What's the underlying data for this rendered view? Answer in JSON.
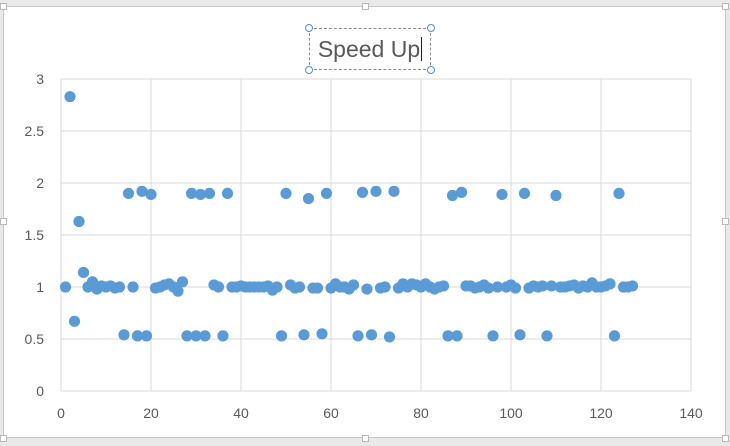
{
  "chart_data": {
    "type": "scatter",
    "title": "Speed Up",
    "xlabel": "",
    "ylabel": "",
    "xlim": [
      0,
      140
    ],
    "ylim": [
      0,
      3
    ],
    "x_ticks": [
      "0",
      "20",
      "40",
      "60",
      "80",
      "100",
      "120",
      "140"
    ],
    "y_ticks": [
      "0",
      "0.5",
      "1",
      "1.5",
      "2",
      "2.5",
      "3"
    ],
    "grid": true,
    "legend": "none",
    "marker_color": "#5b9bd5",
    "gridline_color": "#d9d9d9",
    "series": [
      {
        "points": [
          [
            1,
            1.0
          ],
          [
            2,
            2.83
          ],
          [
            3,
            0.67
          ],
          [
            4,
            1.63
          ],
          [
            5,
            1.14
          ],
          [
            6,
            1.0
          ],
          [
            7,
            1.05
          ],
          [
            8,
            0.98
          ],
          [
            9,
            1.01
          ],
          [
            10,
            1.0
          ],
          [
            11,
            1.01
          ],
          [
            12,
            0.99
          ],
          [
            13,
            1.0
          ],
          [
            14,
            0.54
          ],
          [
            15,
            1.9
          ],
          [
            16,
            1.0
          ],
          [
            17,
            0.53
          ],
          [
            18,
            1.92
          ],
          [
            19,
            0.53
          ],
          [
            20,
            1.89
          ],
          [
            21,
            0.99
          ],
          [
            22,
            1.0
          ],
          [
            23,
            1.02
          ],
          [
            24,
            1.03
          ],
          [
            25,
            1.0
          ],
          [
            26,
            0.96
          ],
          [
            27,
            1.05
          ],
          [
            28,
            0.53
          ],
          [
            29,
            1.9
          ],
          [
            30,
            0.53
          ],
          [
            31,
            1.89
          ],
          [
            32,
            0.53
          ],
          [
            33,
            1.9
          ],
          [
            34,
            1.02
          ],
          [
            35,
            1.0
          ],
          [
            36,
            0.53
          ],
          [
            37,
            1.9
          ],
          [
            38,
            1.0
          ],
          [
            39,
            1.0
          ],
          [
            40,
            1.01
          ],
          [
            41,
            1.0
          ],
          [
            42,
            1.0
          ],
          [
            43,
            1.0
          ],
          [
            44,
            1.0
          ],
          [
            45,
            1.0
          ],
          [
            46,
            1.01
          ],
          [
            47,
            0.97
          ],
          [
            48,
            1.0
          ],
          [
            49,
            0.53
          ],
          [
            50,
            1.9
          ],
          [
            51,
            1.02
          ],
          [
            52,
            0.99
          ],
          [
            53,
            1.0
          ],
          [
            54,
            0.54
          ],
          [
            55,
            1.85
          ],
          [
            56,
            0.99
          ],
          [
            57,
            0.99
          ],
          [
            58,
            0.55
          ],
          [
            59,
            1.9
          ],
          [
            60,
            0.99
          ],
          [
            61,
            1.03
          ],
          [
            62,
            1.0
          ],
          [
            63,
            1.0
          ],
          [
            64,
            0.98
          ],
          [
            65,
            1.02
          ],
          [
            66,
            0.53
          ],
          [
            67,
            1.91
          ],
          [
            68,
            0.98
          ],
          [
            69,
            0.54
          ],
          [
            70,
            1.92
          ],
          [
            71,
            0.99
          ],
          [
            72,
            1.0
          ],
          [
            73,
            0.52
          ],
          [
            74,
            1.92
          ],
          [
            75,
            0.99
          ],
          [
            76,
            1.03
          ],
          [
            77,
            1.0
          ],
          [
            78,
            1.03
          ],
          [
            79,
            1.02
          ],
          [
            80,
            1.0
          ],
          [
            81,
            1.03
          ],
          [
            82,
            1.0
          ],
          [
            83,
            0.98
          ],
          [
            84,
            1.0
          ],
          [
            85,
            1.01
          ],
          [
            86,
            0.53
          ],
          [
            87,
            1.88
          ],
          [
            88,
            0.53
          ],
          [
            89,
            1.91
          ],
          [
            90,
            1.01
          ],
          [
            91,
            1.01
          ],
          [
            92,
            0.99
          ],
          [
            93,
            1.0
          ],
          [
            94,
            1.02
          ],
          [
            95,
            0.99
          ],
          [
            96,
            0.53
          ],
          [
            97,
            1.0
          ],
          [
            98,
            1.89
          ],
          [
            99,
            1.0
          ],
          [
            100,
            1.02
          ],
          [
            101,
            0.99
          ],
          [
            102,
            0.54
          ],
          [
            103,
            1.9
          ],
          [
            104,
            0.99
          ],
          [
            105,
            1.01
          ],
          [
            106,
            1.0
          ],
          [
            107,
            1.01
          ],
          [
            108,
            0.53
          ],
          [
            109,
            1.01
          ],
          [
            110,
            1.88
          ],
          [
            111,
            1.0
          ],
          [
            112,
            1.0
          ],
          [
            113,
            1.01
          ],
          [
            114,
            1.02
          ],
          [
            115,
            0.99
          ],
          [
            116,
            1.01
          ],
          [
            117,
            1.0
          ],
          [
            118,
            1.04
          ],
          [
            119,
            1.0
          ],
          [
            120,
            1.0
          ],
          [
            121,
            1.01
          ],
          [
            122,
            1.03
          ],
          [
            123,
            0.53
          ],
          [
            124,
            1.9
          ],
          [
            125,
            1.0
          ],
          [
            126,
            1.0
          ],
          [
            127,
            1.01
          ]
        ]
      }
    ]
  }
}
